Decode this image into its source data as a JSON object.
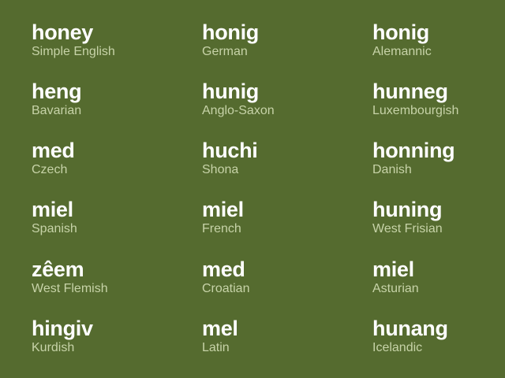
{
  "theme": {
    "background": "#556b2f",
    "word_color": "#ffffff",
    "language_color": "#c7d3a8"
  },
  "entries": [
    {
      "word": "honey",
      "language": "Simple English"
    },
    {
      "word": "honig",
      "language": "German"
    },
    {
      "word": "honig",
      "language": "Alemannic"
    },
    {
      "word": "heng",
      "language": "Bavarian"
    },
    {
      "word": "hunig",
      "language": "Anglo-Saxon"
    },
    {
      "word": "hunneg",
      "language": "Luxembourgish"
    },
    {
      "word": "med",
      "language": "Czech"
    },
    {
      "word": "huchi",
      "language": "Shona"
    },
    {
      "word": "honning",
      "language": "Danish"
    },
    {
      "word": "miel",
      "language": "Spanish"
    },
    {
      "word": "miel",
      "language": "French"
    },
    {
      "word": "huning",
      "language": "West Frisian"
    },
    {
      "word": "zêem",
      "language": "West Flemish"
    },
    {
      "word": "med",
      "language": "Croatian"
    },
    {
      "word": "miel",
      "language": "Asturian"
    },
    {
      "word": "hingiv",
      "language": "Kurdish"
    },
    {
      "word": "mel",
      "language": "Latin"
    },
    {
      "word": "hunang",
      "language": "Icelandic"
    }
  ]
}
